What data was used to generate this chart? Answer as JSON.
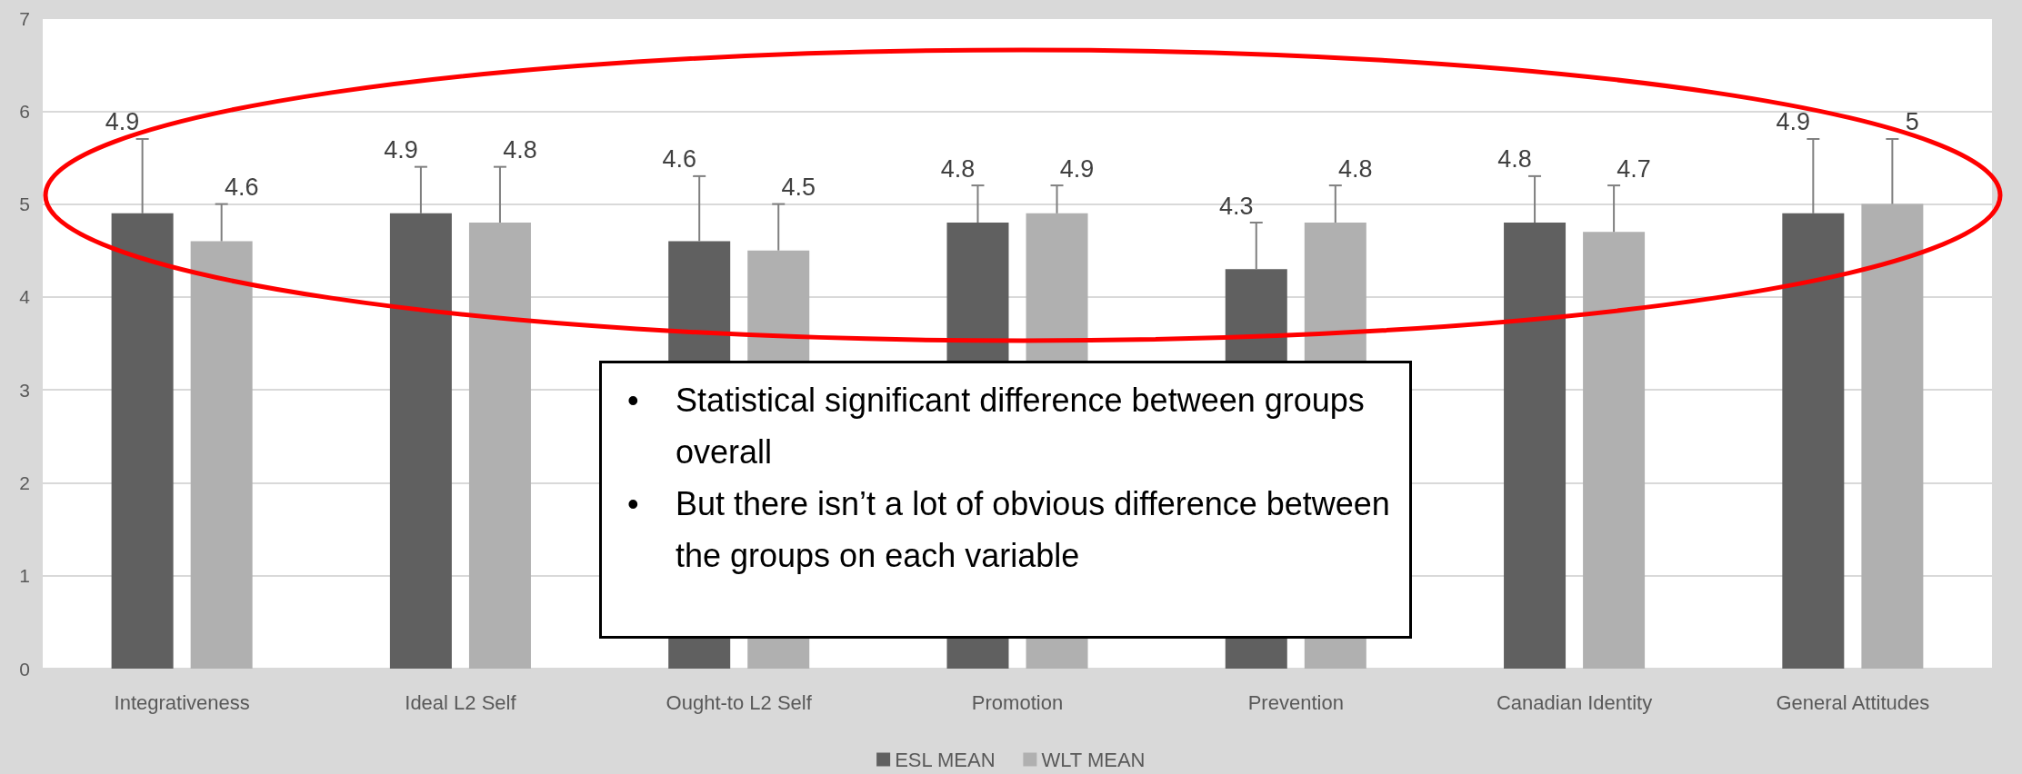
{
  "chart_data": {
    "type": "bar",
    "categories": [
      "Integrativeness",
      "Ideal L2 Self",
      "Ought-to L2 Self",
      "Promotion",
      "Prevention",
      "Canadian Identity",
      "General Attitudes"
    ],
    "series": [
      {
        "name": "ESL MEAN",
        "color": "#606060",
        "values": [
          4.9,
          4.9,
          4.6,
          4.8,
          4.3,
          4.8,
          4.9
        ],
        "errors": [
          [
            4.9,
            5.7
          ],
          [
            4.9,
            5.4
          ],
          [
            4.6,
            5.3
          ],
          [
            4.8,
            5.2
          ],
          [
            4.3,
            4.8
          ],
          [
            4.8,
            5.3
          ],
          [
            4.9,
            5.7
          ]
        ]
      },
      {
        "name": "WLT MEAN",
        "color": "#b0b0b0",
        "values": [
          4.6,
          4.8,
          4.5,
          4.9,
          4.8,
          4.7,
          5
        ],
        "errors": [
          [
            4.6,
            5.0
          ],
          [
            4.8,
            5.4
          ],
          [
            4.5,
            5.0
          ],
          [
            4.9,
            5.2
          ],
          [
            4.8,
            5.2
          ],
          [
            4.7,
            5.2
          ],
          [
            5,
            5.7
          ]
        ]
      }
    ],
    "ylim": [
      0,
      7
    ],
    "yticks": [
      0,
      1,
      2,
      3,
      4,
      5,
      6,
      7
    ],
    "grid": "y",
    "legend": "bottom",
    "data_labels": true,
    "annotations": [
      "•\tStatistical significant difference between groups overall",
      "•\tBut there isn’t a lot of obvious difference between the groups on each variable"
    ]
  }
}
